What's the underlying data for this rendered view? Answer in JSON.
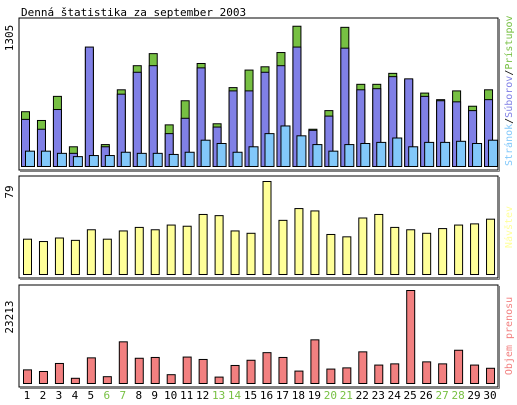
{
  "chart_data": [
    {
      "type": "bar",
      "title": "Denná štatistika za september 2003",
      "categories": [
        "1",
        "2",
        "3",
        "4",
        "5",
        "6",
        "7",
        "8",
        "9",
        "10",
        "11",
        "12",
        "13",
        "14",
        "15",
        "16",
        "17",
        "18",
        "19",
        "20",
        "21",
        "22",
        "23",
        "24",
        "25",
        "26",
        "27",
        "28",
        "29",
        "30"
      ],
      "weekend_days": [
        "6",
        "7",
        "13",
        "14",
        "20",
        "21",
        "27",
        "28"
      ],
      "ymax_label": "1305",
      "ylim": [
        0,
        1305
      ],
      "legend": [
        "Stránok",
        "Súborov",
        "Prístupov"
      ],
      "series": [
        {
          "name": "Prístupov",
          "color": "#77c043",
          "values": [
            500,
            420,
            640,
            180,
            1070,
            200,
            700,
            920,
            1030,
            380,
            600,
            940,
            390,
            720,
            880,
            910,
            1040,
            1280,
            340,
            510,
            1270,
            750,
            750,
            850,
            790,
            670,
            610,
            690,
            550,
            700
          ]
        },
        {
          "name": "Súborov",
          "color": "#8080e6",
          "values": [
            430,
            340,
            520,
            120,
            1090,
            180,
            660,
            860,
            920,
            300,
            440,
            900,
            360,
            690,
            690,
            860,
            920,
            1090,
            330,
            460,
            1080,
            700,
            710,
            820,
            800,
            640,
            600,
            590,
            510,
            610
          ]
        },
        {
          "name": "Stránok",
          "color": "#82c8fa",
          "values": [
            140,
            140,
            120,
            90,
            100,
            100,
            130,
            120,
            120,
            110,
            130,
            240,
            210,
            130,
            180,
            300,
            370,
            280,
            200,
            140,
            200,
            210,
            220,
            260,
            180,
            220,
            220,
            230,
            210,
            240
          ]
        }
      ]
    },
    {
      "type": "bar",
      "categories": [
        "1",
        "2",
        "3",
        "4",
        "5",
        "6",
        "7",
        "8",
        "9",
        "10",
        "11",
        "12",
        "13",
        "14",
        "15",
        "16",
        "17",
        "18",
        "19",
        "20",
        "21",
        "22",
        "23",
        "24",
        "25",
        "26",
        "27",
        "28",
        "29",
        "30"
      ],
      "ymax_label": "79",
      "ylim": [
        0,
        79
      ],
      "series_label": "Návštev",
      "series": [
        {
          "name": "Návštev",
          "color": "#ffff99",
          "values": [
            30,
            28,
            31,
            29,
            38,
            30,
            37,
            40,
            38,
            42,
            41,
            51,
            50,
            37,
            35,
            79,
            46,
            56,
            54,
            34,
            32,
            48,
            51,
            40,
            38,
            35,
            39,
            42,
            43,
            47
          ]
        }
      ]
    },
    {
      "type": "bar",
      "categories": [
        "1",
        "2",
        "3",
        "4",
        "5",
        "6",
        "7",
        "8",
        "9",
        "10",
        "11",
        "12",
        "13",
        "14",
        "15",
        "16",
        "17",
        "18",
        "19",
        "20",
        "21",
        "22",
        "23",
        "24",
        "25",
        "26",
        "27",
        "28",
        "29",
        "30"
      ],
      "ymax_label": "23213",
      "ylim": [
        0,
        23213
      ],
      "series_label": "Objem prenosu",
      "series": [
        {
          "name": "Objem prenosu",
          "color": "#f28080",
          "values": [
            3400,
            3000,
            5000,
            1300,
            6400,
            1700,
            10400,
            6300,
            6500,
            2200,
            6600,
            6000,
            1600,
            4500,
            5800,
            7700,
            6500,
            3100,
            10900,
            3600,
            3900,
            7900,
            4600,
            4900,
            23213,
            5400,
            4900,
            8300,
            4600,
            3800
          ]
        }
      ]
    }
  ]
}
